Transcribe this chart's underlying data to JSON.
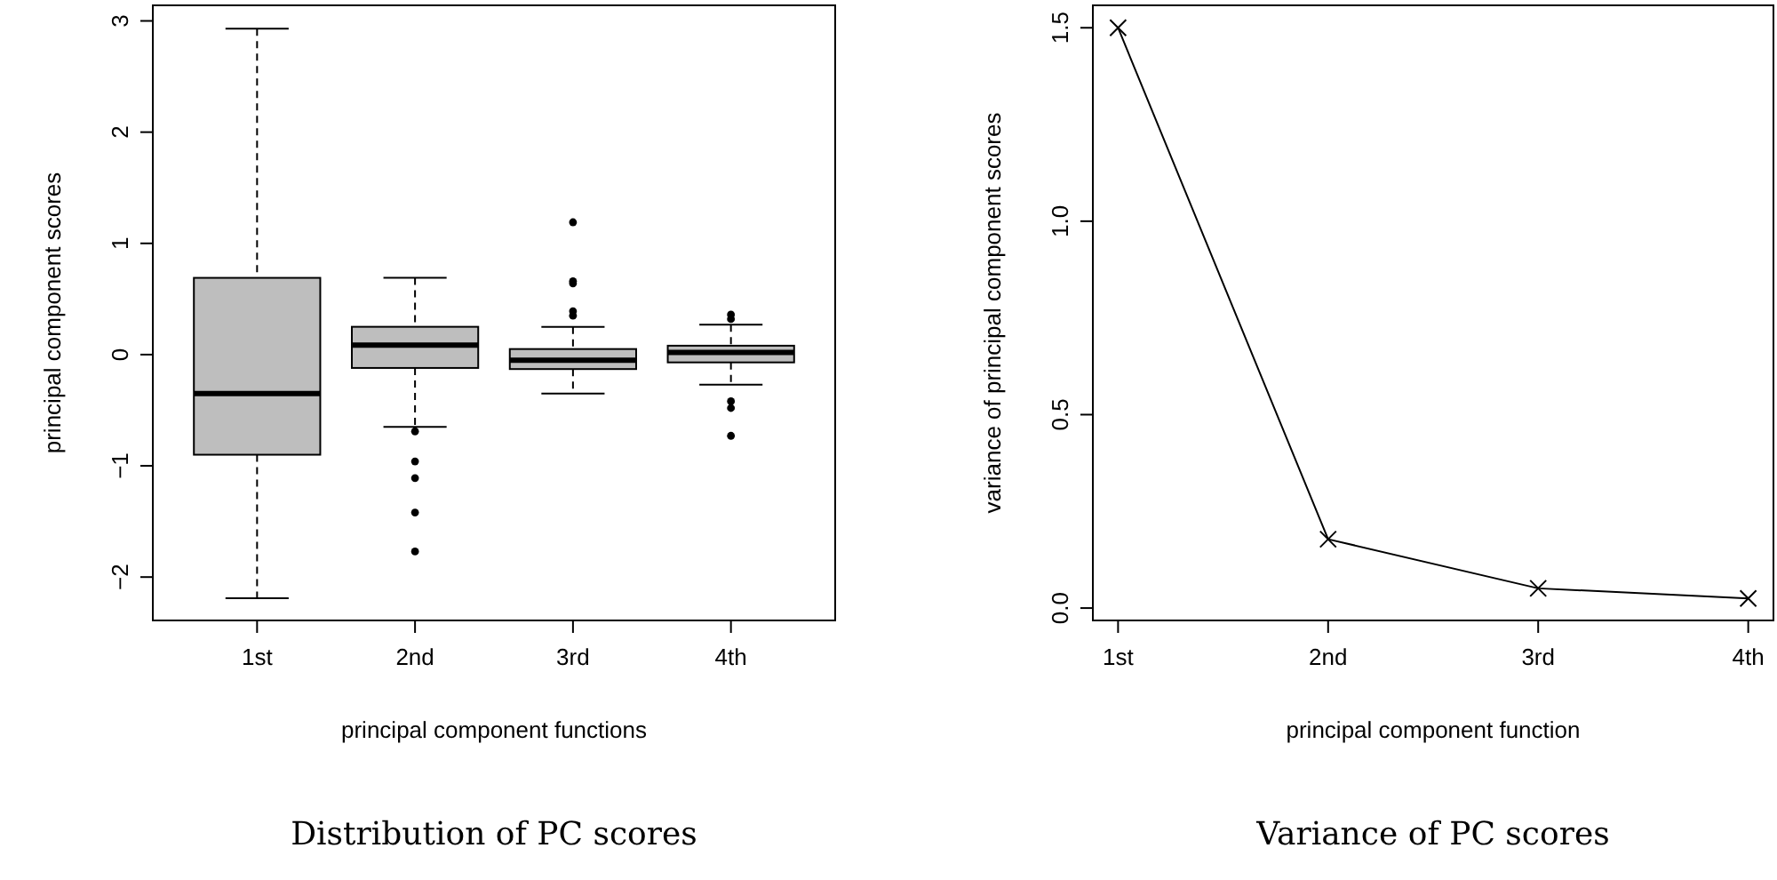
{
  "chart_data": [
    {
      "type": "box",
      "title": "Distribution of PC scores",
      "xlabel": "principal component functions",
      "ylabel": "principal component scores",
      "categories": [
        "1st",
        "2nd",
        "3rd",
        "4th"
      ],
      "color": "#bebebe",
      "boxes": [
        {
          "low": -2.19,
          "q1": -0.9,
          "median": -0.35,
          "q3": 0.69,
          "high": 2.93
        },
        {
          "low": -0.65,
          "q1": -0.12,
          "median": 0.085,
          "q3": 0.25,
          "high": 0.69,
          "outliers": [
            -0.69,
            -0.96,
            -1.11,
            -1.42,
            -1.77
          ]
        },
        {
          "low": -0.35,
          "q1": -0.13,
          "median": -0.05,
          "q3": 0.05,
          "high": 0.25,
          "outliers": [
            1.19,
            0.66,
            0.64,
            0.39,
            0.35
          ]
        },
        {
          "low": -0.27,
          "q1": -0.07,
          "median": 0.02,
          "q3": 0.08,
          "high": 0.27,
          "outliers": [
            0.36,
            0.32,
            -0.42,
            -0.48,
            -0.73
          ]
        }
      ],
      "ylim": [
        -2.39,
        3.14
      ],
      "yticks": [
        {
          "value": -2,
          "label": "−2"
        },
        {
          "value": -1,
          "label": "−1"
        },
        0,
        1,
        2,
        3
      ]
    },
    {
      "type": "line",
      "title": "Variance of PC scores",
      "xlabel": "principal component function",
      "ylabel": "variance of principal component scores",
      "categories": [
        "1st",
        "2nd",
        "3rd",
        "4th"
      ],
      "series": [
        {
          "color": "#000000",
          "values": [
            1.5,
            0.178,
            0.051,
            0.025
          ]
        }
      ],
      "marker": "cross",
      "ylim": [
        -0.032,
        1.558
      ],
      "yticks": [
        {
          "value": 0,
          "label": "0.0"
        },
        0.5,
        {
          "value": 1,
          "label": "1.0"
        },
        1.5
      ]
    }
  ]
}
